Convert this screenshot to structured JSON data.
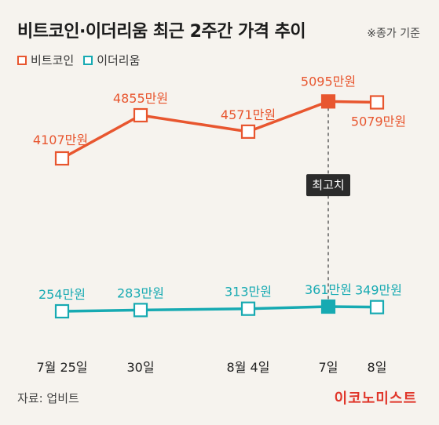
{
  "title": "비트코인·이더리움 최근 2주간 가격 추이",
  "note": "※종가 기준",
  "source": "자료: 업비트",
  "brand": "이코노미스트",
  "colors": {
    "btc": "#e8562f",
    "eth": "#17aab2",
    "callout": "#2b2b2b"
  },
  "callout": "최고치",
  "chart_data": {
    "type": "line",
    "categories": [
      "7월 25일",
      "30일",
      "8월 4일",
      "7일",
      "8일"
    ],
    "series": [
      {
        "name": "비트코인",
        "values": [
          4107,
          4855,
          4571,
          5095,
          5079
        ],
        "labels": [
          "4107만원",
          "4855만원",
          "4571만원",
          "5095만원",
          "5079만원"
        ],
        "highlight_index": 3
      },
      {
        "name": "이더리움",
        "values": [
          254,
          283,
          313,
          361,
          349
        ],
        "labels": [
          "254만원",
          "283만원",
          "313만원",
          "361만원",
          "349만원"
        ],
        "highlight_index": 3
      }
    ],
    "title": "비트코인·이더리움 최근 2주간 가격 추이",
    "xlabel": "",
    "ylabel": "",
    "grid": false,
    "legend": "top-left"
  }
}
